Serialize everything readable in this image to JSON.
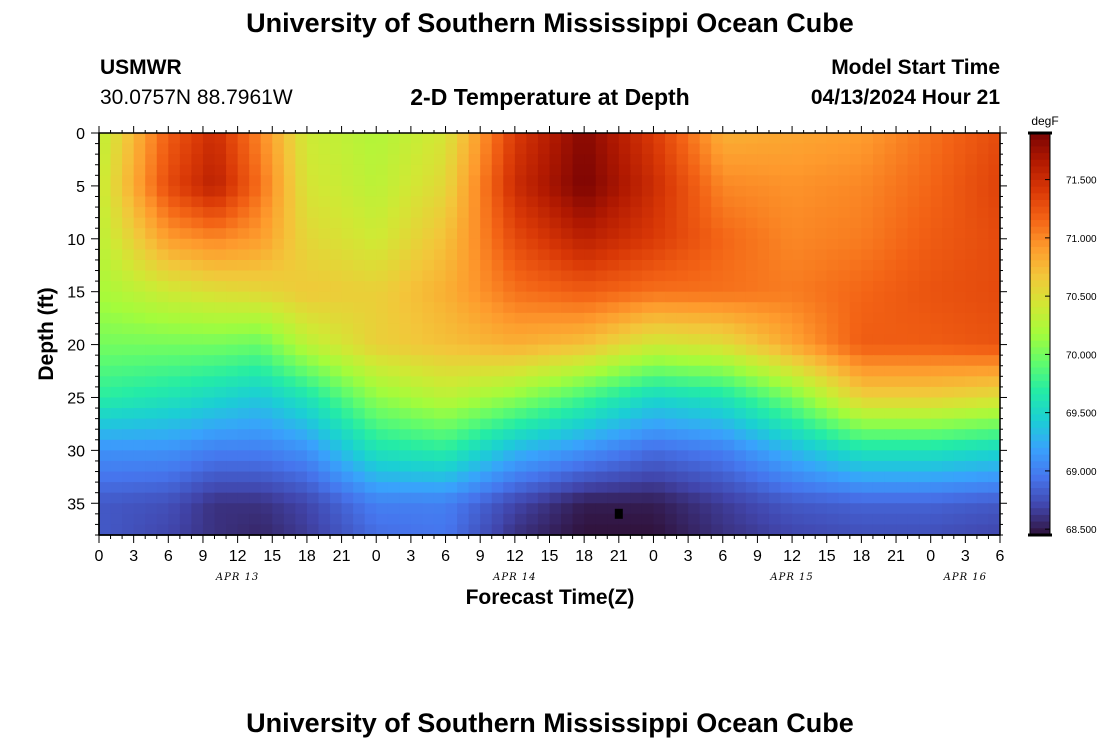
{
  "page": {
    "title_top": "University of Southern Mississippi Ocean Cube",
    "title_bottom": "University of Southern Mississippi Ocean Cube",
    "station": "USMWR",
    "coords": "30.0757N  88.7961W",
    "model_label": "Model Start Time",
    "model_time": "04/13/2024 Hour 21"
  },
  "chart_data": {
    "type": "heatmap",
    "title": "2-D Temperature at Depth",
    "xlabel": "Forecast Time(Z)",
    "ylabel": "Depth (ft)",
    "x_hours_range": [
      0,
      78
    ],
    "y_range": [
      0,
      38
    ],
    "x_tick_labels": [
      "0",
      "3",
      "6",
      "9",
      "12",
      "15",
      "18",
      "21",
      "0",
      "3",
      "6",
      "9",
      "12",
      "15",
      "18",
      "21",
      "0",
      "3",
      "6",
      "9",
      "12",
      "15",
      "18",
      "21",
      "0",
      "3",
      "6"
    ],
    "y_tick_labels": [
      "0",
      "5",
      "10",
      "15",
      "20",
      "25",
      "30",
      "35"
    ],
    "y_tick_values": [
      0,
      5,
      10,
      15,
      20,
      25,
      30,
      35
    ],
    "date_labels": [
      {
        "text": "APR 13",
        "hour": 12
      },
      {
        "text": "APR 14",
        "hour": 36
      },
      {
        "text": "APR 15",
        "hour": 60
      },
      {
        "text": "APR 16",
        "hour": 75
      }
    ],
    "colorbar": {
      "unit": "degF",
      "min": 68.45,
      "max": 71.9,
      "tick_labels": [
        "68.500",
        "69.000",
        "69.500",
        "70.000",
        "70.500",
        "71.000",
        "71.500"
      ],
      "tick_values": [
        68.5,
        69.0,
        69.5,
        70.0,
        70.5,
        71.0,
        71.5
      ],
      "colors": [
        "#30123b",
        "#4145ab",
        "#4675ed",
        "#39a2fc",
        "#1bcfd4",
        "#24eca6",
        "#61fc6c",
        "#a4fc3b",
        "#d1e834",
        "#f3c63a",
        "#fe9b2d",
        "#f36315",
        "#d93806",
        "#b11901",
        "#7a0403"
      ]
    },
    "temperature_profile": {
      "hours": [
        0,
        6,
        10,
        14,
        18,
        24,
        30,
        36,
        42,
        48,
        54,
        60,
        66,
        72,
        78
      ],
      "depths": [
        0,
        5,
        10,
        15,
        20,
        25,
        30,
        35,
        38
      ],
      "values_degF": [
        [
          70.3,
          71.2,
          71.5,
          71.0,
          70.4,
          70.25,
          70.45,
          71.4,
          71.85,
          71.4,
          70.8,
          70.85,
          70.9,
          71.1,
          71.3
        ],
        [
          70.35,
          71.3,
          71.6,
          71.1,
          70.45,
          70.3,
          70.55,
          71.5,
          71.9,
          71.5,
          71.0,
          70.95,
          71.0,
          71.15,
          71.35
        ],
        [
          70.3,
          70.9,
          71.0,
          70.9,
          70.55,
          70.4,
          70.7,
          71.3,
          71.6,
          71.4,
          71.15,
          71.0,
          71.05,
          71.2,
          71.3
        ],
        [
          70.2,
          70.4,
          70.5,
          70.55,
          70.65,
          70.6,
          70.8,
          71.1,
          71.2,
          71.1,
          71.1,
          71.05,
          71.15,
          71.25,
          71.3
        ],
        [
          70.0,
          70.0,
          70.0,
          69.95,
          70.3,
          70.6,
          70.7,
          70.8,
          70.7,
          70.4,
          70.5,
          70.85,
          71.2,
          71.2,
          71.25
        ],
        [
          69.7,
          69.6,
          69.5,
          69.4,
          69.6,
          70.1,
          70.3,
          70.1,
          69.8,
          69.5,
          69.6,
          70.0,
          70.6,
          70.6,
          70.5
        ],
        [
          69.1,
          69.1,
          69.0,
          69.0,
          69.1,
          69.6,
          69.7,
          69.3,
          69.1,
          68.9,
          69.0,
          69.3,
          69.6,
          69.6,
          69.5
        ],
        [
          68.8,
          68.75,
          68.6,
          68.6,
          68.7,
          69.0,
          69.0,
          68.7,
          68.5,
          68.5,
          68.65,
          68.8,
          68.85,
          68.85,
          68.8
        ],
        [
          68.8,
          68.7,
          68.6,
          68.55,
          68.65,
          68.9,
          68.95,
          68.6,
          68.45,
          68.45,
          68.6,
          68.7,
          68.75,
          68.75,
          68.7
        ]
      ]
    },
    "marker": {
      "hour": 45,
      "depth": 36
    }
  }
}
